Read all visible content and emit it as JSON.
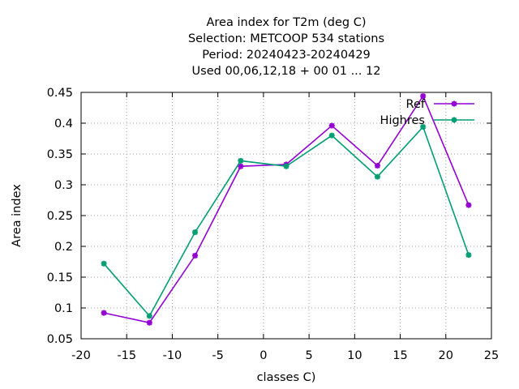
{
  "chart_data": {
    "type": "line",
    "title_lines": [
      "Area index  for T2m (deg C)",
      "Selection: METCOOP    534 stations",
      "Period: 20240423-20240429",
      "Used  00,06,12,18 + 00 01 ... 12"
    ],
    "xlabel": "classes C)",
    "ylabel": "Area index",
    "xlim": [
      -20,
      25
    ],
    "ylim": [
      0.05,
      0.45
    ],
    "xticks": [
      "-20",
      "-15",
      "-10",
      "-5",
      "0",
      "5",
      "10",
      "15",
      "20",
      "25"
    ],
    "yticks": [
      "0.05",
      "0.1",
      "0.15",
      "0.2",
      "0.25",
      "0.3",
      "0.35",
      "0.4",
      "0.45"
    ],
    "grid": true,
    "legend_position": "top-right",
    "x": [
      -17.5,
      -12.5,
      -7.5,
      -2.5,
      2.5,
      7.5,
      12.5,
      17.5,
      22.5
    ],
    "series": [
      {
        "name": "Ref",
        "color": "#9400d3",
        "values": [
          0.092,
          0.076,
          0.185,
          0.33,
          0.333,
          0.396,
          0.331,
          0.444,
          0.267
        ]
      },
      {
        "name": "Highres",
        "color": "#009e73",
        "values": [
          0.172,
          0.087,
          0.223,
          0.339,
          0.33,
          0.38,
          0.313,
          0.394,
          0.186
        ]
      }
    ]
  }
}
